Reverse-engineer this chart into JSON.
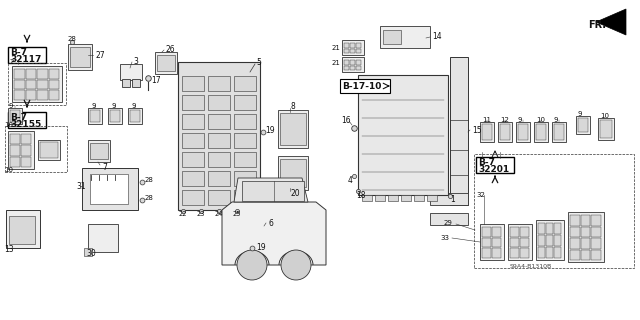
{
  "background_color": "#ffffff",
  "line_color": "#333333",
  "text_color": "#111111",
  "fill_light": "#eeeeee",
  "fill_mid": "#d8d8d8",
  "fill_dark": "#bbbbbb",
  "ref_labels": {
    "ref1": "B-7\n32117",
    "ref2": "B-7\n32155",
    "ref3": "B-7\n32201",
    "ref4": "B-17-10",
    "code": "S9A4-B1310B",
    "fr": "FR."
  }
}
